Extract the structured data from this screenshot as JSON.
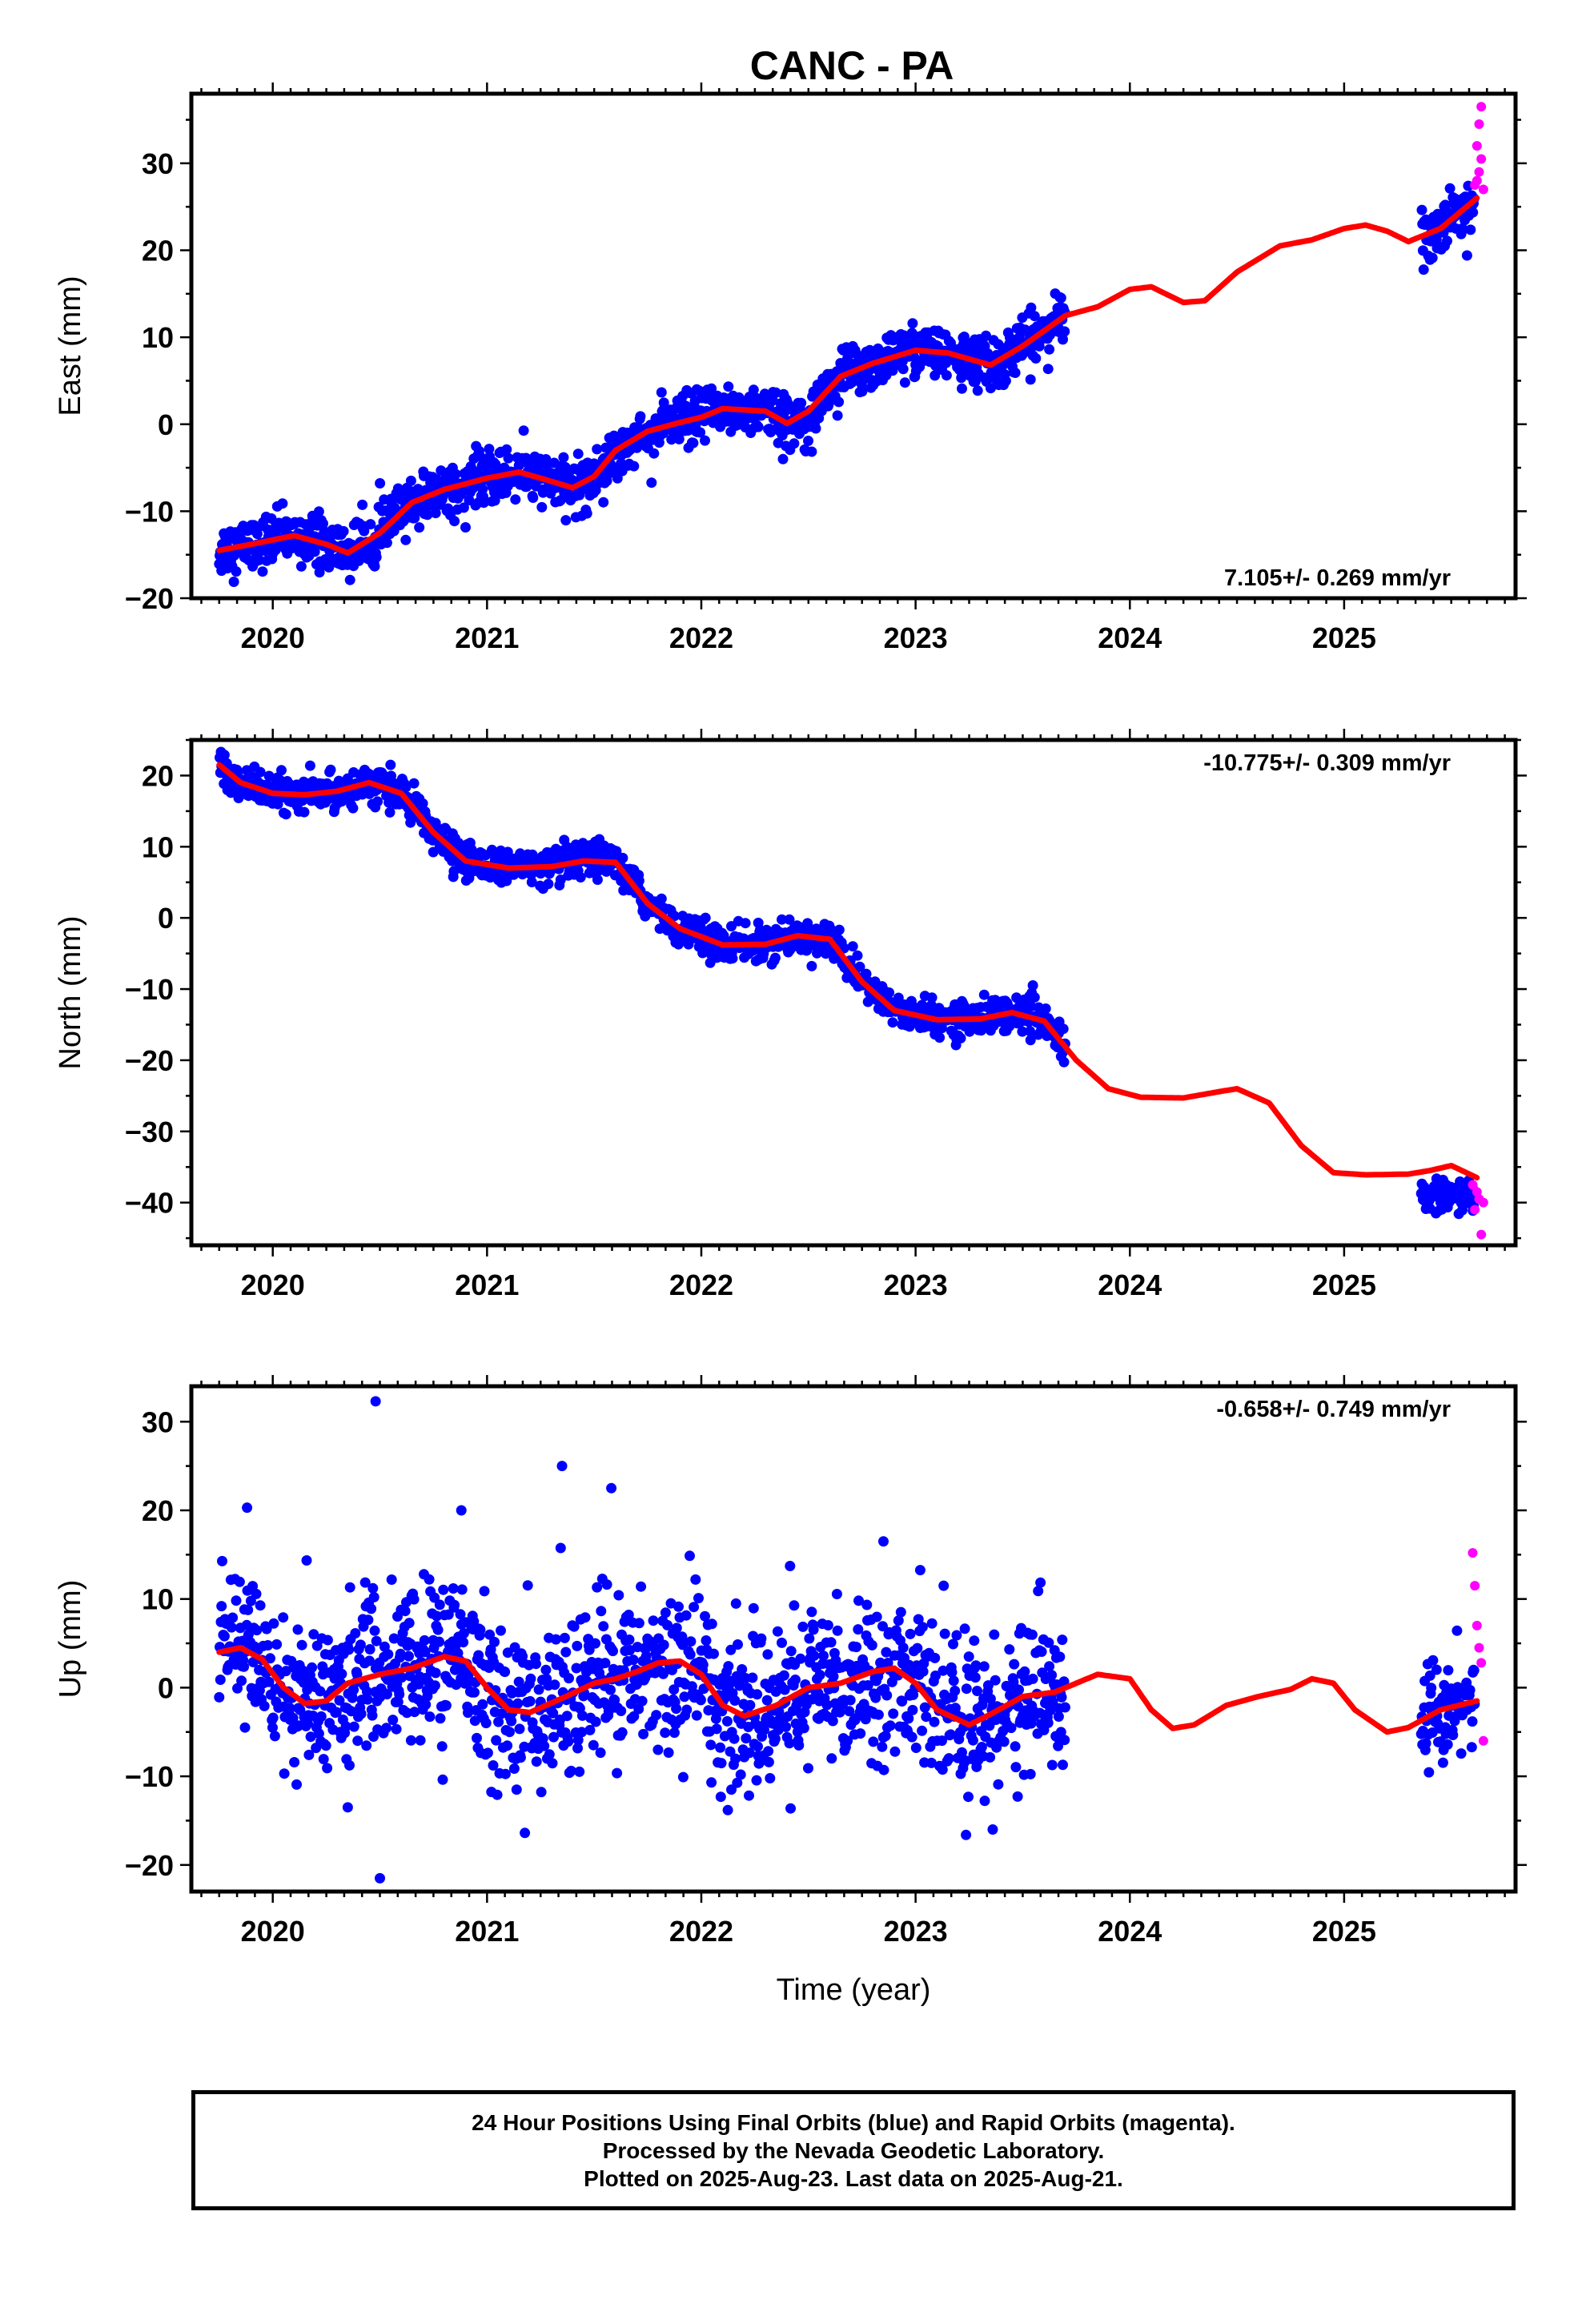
{
  "title": "CANC - PA",
  "colors": {
    "final_orbits": "#0000ff",
    "rapid_orbits": "#ff00ff",
    "model_fit": "#ff0000",
    "frame": "#000000"
  },
  "chart_data": [
    {
      "type": "scatter",
      "component": "East",
      "ylabel": "East (mm)",
      "xlabel": "",
      "xlim": [
        2019.62,
        2025.8
      ],
      "ylim": [
        -20,
        38
      ],
      "yticks": [
        -20,
        -10,
        0,
        10,
        20,
        30
      ],
      "xticks": [
        2020,
        2021,
        2022,
        2023,
        2024,
        2025
      ],
      "rate_label": "7.105+/- 0.269 mm/yr",
      "grid": false,
      "model_fit": {
        "x": [
          2019.75,
          2019.9,
          2020.1,
          2020.25,
          2020.35,
          2020.5,
          2020.65,
          2020.8,
          2021.0,
          2021.15,
          2021.25,
          2021.4,
          2021.5,
          2021.6,
          2021.75,
          2021.9,
          2022.0,
          2022.1,
          2022.3,
          2022.4,
          2022.5,
          2022.65,
          2022.8,
          2023.0,
          2023.15,
          2023.35,
          2023.5,
          2023.7,
          2023.85,
          2024.0,
          2024.1,
          2024.25,
          2024.35,
          2024.5,
          2024.7,
          2024.85,
          2025.0,
          2025.1,
          2025.2,
          2025.3,
          2025.45,
          2025.62
        ],
        "y": [
          -14.5,
          -13.8,
          -12.8,
          -13.8,
          -14.8,
          -12.5,
          -9.0,
          -7.5,
          -6.2,
          -5.5,
          -6.2,
          -7.3,
          -6.0,
          -3.0,
          -0.8,
          0.2,
          0.8,
          1.8,
          1.5,
          0.1,
          1.5,
          5.5,
          7.0,
          8.5,
          8.2,
          6.8,
          9.0,
          12.5,
          13.5,
          15.5,
          15.8,
          14.0,
          14.2,
          17.5,
          20.5,
          21.2,
          22.5,
          22.9,
          22.2,
          21.0,
          22.5,
          26.0
        ]
      },
      "final_orbit_segments": [
        {
          "x_range": [
            2019.75,
            2023.7
          ],
          "trend": "follows model fit",
          "scatter_mm": 1.5
        },
        {
          "x_range": [
            2025.36,
            2025.61
          ],
          "trend": "follows model fit",
          "scatter_mm": 1.5
        }
      ],
      "rapid_orbit_points": {
        "x": [
          2025.61,
          2025.62,
          2025.62,
          2025.63,
          2025.63,
          2025.64,
          2025.64,
          2025.65
        ],
        "y": [
          27.5,
          28.0,
          32.0,
          34.5,
          29.0,
          36.5,
          30.5,
          27.0
        ]
      }
    },
    {
      "type": "scatter",
      "component": "North",
      "ylabel": "North (mm)",
      "xlabel": "",
      "xlim": [
        2019.62,
        2025.8
      ],
      "ylim": [
        -46,
        25
      ],
      "yticks": [
        -40,
        -30,
        -20,
        -10,
        0,
        10,
        20
      ],
      "xticks": [
        2020,
        2021,
        2022,
        2023,
        2024,
        2025
      ],
      "rate_label": "-10.775+/- 0.309 mm/yr",
      "grid": false,
      "model_fit": {
        "x": [
          2019.75,
          2019.85,
          2020.0,
          2020.15,
          2020.3,
          2020.45,
          2020.6,
          2020.75,
          2020.9,
          2021.1,
          2021.3,
          2021.45,
          2021.6,
          2021.75,
          2021.9,
          2022.1,
          2022.3,
          2022.45,
          2022.6,
          2022.75,
          2022.9,
          2023.1,
          2023.3,
          2023.45,
          2023.6,
          2023.75,
          2023.9,
          2024.05,
          2024.25,
          2024.4,
          2024.5,
          2024.65,
          2024.8,
          2024.95,
          2025.1,
          2025.3,
          2025.4,
          2025.5,
          2025.62
        ],
        "y": [
          21.5,
          19.0,
          17.5,
          17.3,
          17.8,
          19.0,
          17.5,
          12.0,
          8.0,
          7.0,
          7.2,
          8.0,
          7.8,
          2.0,
          -1.5,
          -3.8,
          -3.7,
          -2.5,
          -3.0,
          -9.0,
          -13.0,
          -14.3,
          -14.2,
          -13.3,
          -14.5,
          -20.0,
          -24.0,
          -25.2,
          -25.3,
          -24.5,
          -24.0,
          -26.0,
          -32.0,
          -35.8,
          -36.1,
          -36.0,
          -35.5,
          -34.8,
          -36.5
        ]
      },
      "final_orbit_segments": [
        {
          "x_range": [
            2019.75,
            2023.7
          ],
          "trend": "follows model fit",
          "scatter_mm": 1.2
        },
        {
          "x_range": [
            2025.36,
            2025.61
          ],
          "trend": "around -39",
          "scatter_mm": 1.2
        }
      ],
      "rapid_orbit_points": {
        "x": [
          2025.6,
          2025.61,
          2025.62,
          2025.63,
          2025.64,
          2025.65
        ],
        "y": [
          -37.5,
          -41.0,
          -38.5,
          -39.5,
          -44.5,
          -40.0
        ]
      }
    },
    {
      "type": "scatter",
      "component": "Up",
      "ylabel": "Up (mm)",
      "xlabel": "Time (year)",
      "xlim": [
        2019.62,
        2025.8
      ],
      "ylim": [
        -23,
        34
      ],
      "yticks": [
        -20,
        -10,
        0,
        10,
        20,
        30
      ],
      "xticks": [
        2020,
        2021,
        2022,
        2023,
        2024,
        2025
      ],
      "rate_label": "-0.658+/- 0.749 mm/yr",
      "grid": false,
      "model_fit": {
        "x": [
          2019.75,
          2019.85,
          2019.95,
          2020.05,
          2020.15,
          2020.25,
          2020.35,
          2020.5,
          2020.65,
          2020.8,
          2020.9,
          2021.0,
          2021.1,
          2021.2,
          2021.35,
          2021.5,
          2021.6,
          2021.7,
          2021.8,
          2021.9,
          2022.0,
          2022.1,
          2022.2,
          2022.35,
          2022.5,
          2022.65,
          2022.8,
          2022.9,
          2023.0,
          2023.1,
          2023.25,
          2023.35,
          2023.5,
          2023.65,
          2023.75,
          2023.85,
          2024.0,
          2024.1,
          2024.2,
          2024.3,
          2024.45,
          2024.6,
          2024.75,
          2024.85,
          2024.95,
          2025.05,
          2025.2,
          2025.3,
          2025.45,
          2025.62
        ],
        "y": [
          4.0,
          4.5,
          3.2,
          0.0,
          -1.8,
          -1.5,
          0.5,
          1.5,
          2.2,
          3.5,
          3.0,
          0.0,
          -2.5,
          -2.8,
          -1.2,
          0.5,
          1.0,
          1.8,
          2.8,
          3.0,
          1.5,
          -2.0,
          -3.2,
          -2.0,
          0.0,
          0.5,
          1.8,
          2.2,
          0.5,
          -2.5,
          -4.2,
          -3.0,
          -1.0,
          -0.5,
          0.5,
          1.5,
          1.0,
          -2.5,
          -4.6,
          -4.2,
          -2.0,
          -1.0,
          -0.2,
          1.0,
          0.5,
          -2.5,
          -5.0,
          -4.5,
          -2.5,
          -1.5
        ]
      },
      "final_orbit_segments": [
        {
          "x_range": [
            2019.75,
            2023.7
          ],
          "trend": "follows model fit",
          "scatter_mm": 4.5
        },
        {
          "x_range": [
            2025.36,
            2025.61
          ],
          "trend": "follows model fit",
          "scatter_mm": 3.0
        }
      ],
      "final_orbit_outliers": {
        "x": [
          2020.48,
          2020.5,
          2021.35,
          2021.58,
          2019.88,
          2020.35,
          2020.88,
          2022.85,
          2023.36
        ],
        "y": [
          32.3,
          -21.5,
          25.0,
          22.5,
          20.3,
          -13.5,
          20.0,
          16.5,
          -16.0
        ]
      },
      "rapid_orbit_points": {
        "x": [
          2025.6,
          2025.61,
          2025.62,
          2025.63,
          2025.64,
          2025.65
        ],
        "y": [
          15.2,
          11.5,
          7.0,
          4.5,
          2.8,
          -6.0
        ]
      }
    }
  ],
  "footer": {
    "line1": "24 Hour Positions Using Final Orbits (blue) and Rapid Orbits (magenta).",
    "line2": "Processed by the Nevada Geodetic Laboratory.",
    "line3": "Plotted on 2025-Aug-23. Last data on 2025-Aug-21."
  }
}
